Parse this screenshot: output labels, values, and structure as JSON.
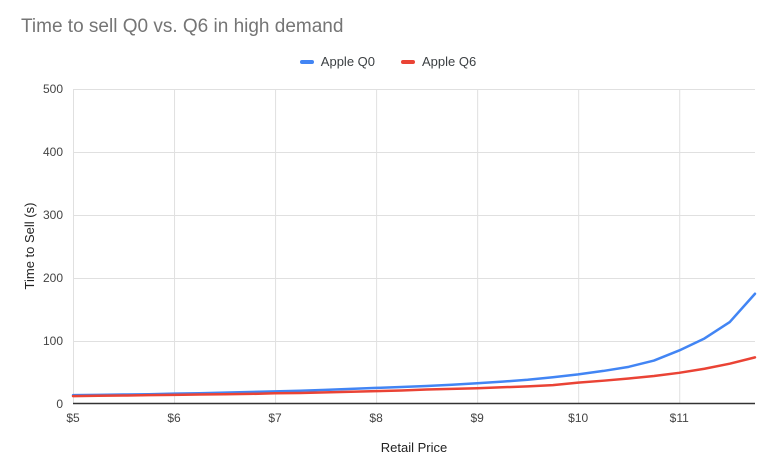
{
  "title": "Time to sell Q0 vs. Q6 in high demand",
  "colors": {
    "background": "#ffffff",
    "title_text": "#757575",
    "tick_text": "#444444",
    "axis_title_text": "#222222",
    "legend_text": "#3c4043",
    "gridline": "#e0e0e0",
    "axis_line": "#333333",
    "series_q0": "#4285F4",
    "series_q6": "#EA4335"
  },
  "chart_data": {
    "type": "line",
    "title": "Time to sell Q0 vs. Q6 in high demand",
    "xlabel": "Retail Price",
    "ylabel": "Time to Sell (s)",
    "xlim": [
      5,
      11.75
    ],
    "ylim": [
      0,
      500
    ],
    "grid": true,
    "legend_position": "top-center",
    "x_tick_values": [
      5,
      6,
      7,
      8,
      9,
      10,
      11
    ],
    "x_tick_labels": [
      "$5",
      "$6",
      "$7",
      "$8",
      "$9",
      "$10",
      "$11"
    ],
    "y_tick_values": [
      0,
      100,
      200,
      300,
      400,
      500
    ],
    "y_tick_labels": [
      "0",
      "100",
      "200",
      "300",
      "400",
      "500"
    ],
    "x": [
      5.0,
      5.25,
      5.5,
      5.75,
      6.0,
      6.25,
      6.5,
      6.75,
      7.0,
      7.25,
      7.5,
      7.75,
      8.0,
      8.25,
      8.5,
      8.75,
      9.0,
      9.25,
      9.5,
      9.75,
      10.0,
      10.25,
      10.5,
      10.75,
      11.0,
      11.25,
      11.5,
      11.75
    ],
    "series": [
      {
        "name": "Apple Q0",
        "color": "#4285F4",
        "values": [
          14,
          14.5,
          15,
          15.5,
          16.5,
          17,
          18,
          19,
          20,
          21,
          22.5,
          24,
          25.5,
          27,
          28.5,
          30.5,
          33,
          35.5,
          38.5,
          42.5,
          47,
          52.5,
          59,
          69,
          85,
          104,
          130,
          175
        ]
      },
      {
        "name": "Apple Q6",
        "color": "#EA4335",
        "values": [
          12.5,
          13,
          13.5,
          14,
          14.5,
          15,
          15.5,
          16,
          17,
          17.5,
          18.5,
          19.5,
          20.5,
          21.5,
          23,
          24,
          25,
          26.5,
          28,
          30,
          34,
          37,
          40.5,
          44.5,
          49.5,
          56,
          64,
          74
        ]
      }
    ]
  }
}
